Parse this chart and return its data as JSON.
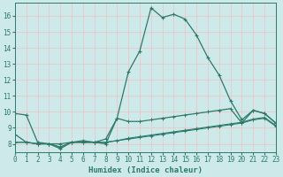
{
  "xlabel": "Humidex (Indice chaleur)",
  "bg_color": "#cde9e9",
  "grid_color": "#e8c8c8",
  "line_color": "#2d7a6a",
  "x_min": 0,
  "x_max": 23,
  "y_min": 7.5,
  "y_max": 16.8,
  "line1_x": [
    0,
    1,
    2,
    3,
    4,
    5,
    6,
    7,
    8,
    9,
    10,
    11,
    12,
    13,
    14,
    15,
    16,
    17,
    18,
    19,
    20,
    21,
    22,
    23
  ],
  "line1_y": [
    9.9,
    9.8,
    8.1,
    8.0,
    7.7,
    8.1,
    8.2,
    8.1,
    8.0,
    9.6,
    12.5,
    13.8,
    16.5,
    15.9,
    16.1,
    15.8,
    14.8,
    13.4,
    12.3,
    10.7,
    9.5,
    10.1,
    9.9,
    9.3
  ],
  "line2_x": [
    0,
    1,
    2,
    3,
    4,
    5,
    6,
    7,
    8,
    9,
    10,
    11,
    12,
    13,
    14,
    15,
    16,
    17,
    18,
    19,
    20,
    21,
    22,
    23
  ],
  "line2_y": [
    8.6,
    8.1,
    8.0,
    8.0,
    8.0,
    8.1,
    8.1,
    8.1,
    8.3,
    9.6,
    9.4,
    9.4,
    9.5,
    9.6,
    9.7,
    9.8,
    9.9,
    10.0,
    10.1,
    10.2,
    9.3,
    10.1,
    9.9,
    9.3
  ],
  "line3_x": [
    0,
    1,
    2,
    3,
    4,
    5,
    6,
    7,
    8,
    9,
    10,
    11,
    12,
    13,
    14,
    15,
    16,
    17,
    18,
    19,
    20,
    21,
    22,
    23
  ],
  "line3_y": [
    8.1,
    8.1,
    8.0,
    8.0,
    7.8,
    8.1,
    8.1,
    8.1,
    8.1,
    8.2,
    8.3,
    8.4,
    8.5,
    8.6,
    8.7,
    8.8,
    8.9,
    9.0,
    9.1,
    9.2,
    9.3,
    9.5,
    9.6,
    9.1
  ],
  "line4_x": [
    0,
    1,
    2,
    3,
    4,
    5,
    6,
    7,
    8,
    9,
    10,
    11,
    12,
    13,
    14,
    15,
    16,
    17,
    18,
    19,
    20,
    21,
    22,
    23
  ],
  "line4_y": [
    8.1,
    8.1,
    8.0,
    8.0,
    7.8,
    8.1,
    8.1,
    8.1,
    8.1,
    8.2,
    8.35,
    8.45,
    8.55,
    8.65,
    8.75,
    8.85,
    8.95,
    9.05,
    9.15,
    9.25,
    9.35,
    9.55,
    9.65,
    9.15
  ],
  "yticks": [
    8,
    9,
    10,
    11,
    12,
    13,
    14,
    15,
    16
  ],
  "xticks": [
    0,
    1,
    2,
    3,
    4,
    5,
    6,
    7,
    8,
    9,
    10,
    11,
    12,
    13,
    14,
    15,
    16,
    17,
    18,
    19,
    20,
    21,
    22,
    23
  ]
}
